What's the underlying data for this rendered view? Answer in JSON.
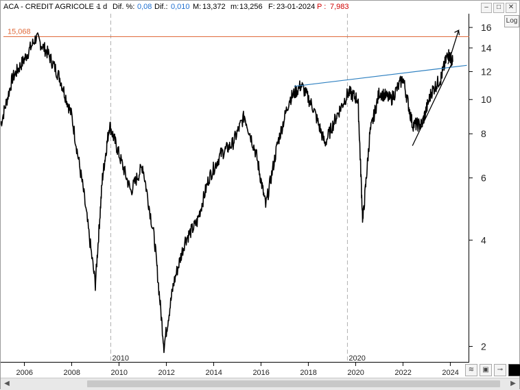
{
  "header": {
    "symbol": "ACA",
    "name": "CREDIT AGRICOLE",
    "period": "1 d",
    "diff_pct_label": "Dif. %:",
    "diff_pct_value": "0,08",
    "diff_label": "Dif.:",
    "diff_value": "0,010",
    "max_label": "M:",
    "max_value": "13,372",
    "min_label": "m:",
    "min_value": "13,256",
    "date_label": "F:",
    "date_value": "23-01-2024",
    "p_label": "P :",
    "p_value": "7,983"
  },
  "window_controls": [
    "minimize-icon",
    "maximize-icon",
    "close-icon"
  ],
  "log_button": "Log",
  "horizontal_line_label": "15,068",
  "colors": {
    "price": "#000000",
    "resistance_line": "#e06a3a",
    "blue_trendline": "#2c7fc0",
    "accent_blue": "#1e6fd0",
    "accent_red": "#d00000"
  },
  "chart_data": {
    "type": "line",
    "y_scale": "log",
    "y_ticks": [
      "2",
      "4",
      "6",
      "8",
      "10",
      "12",
      "14",
      "16"
    ],
    "x_ticks": [
      "2006",
      "2008",
      "2010",
      "2012",
      "2014",
      "2016",
      "2018",
      "2020",
      "2022",
      "2024"
    ],
    "decade_markers": [
      "2010",
      "2020"
    ],
    "series": [
      {
        "values_x": [
          2005.0,
          2005.5,
          2006.0,
          2006.5,
          2007.0,
          2007.5,
          2008.0,
          2008.5,
          2009.0,
          2009.3,
          2009.6,
          2010.0,
          2010.5,
          2011.0,
          2011.5,
          2011.9,
          2012.3,
          2012.8,
          2013.3,
          2013.8,
          2014.3,
          2014.8,
          2015.3,
          2015.8,
          2016.2,
          2016.7,
          2017.2,
          2017.7,
          2018.2,
          2018.7,
          2019.2,
          2019.7,
          2020.1,
          2020.3,
          2020.6,
          2021.0,
          2021.5,
          2022.0,
          2022.4,
          2022.8,
          2023.2,
          2023.6,
          2023.9,
          2024.1
        ],
        "values_y": [
          8.5,
          11.5,
          13.0,
          15.0,
          13.5,
          11.5,
          9.0,
          5.5,
          3.0,
          6.0,
          8.5,
          7.0,
          5.5,
          6.5,
          4.0,
          2.0,
          3.0,
          4.0,
          4.5,
          6.0,
          7.0,
          7.5,
          9.0,
          7.0,
          5.0,
          7.5,
          10.0,
          11.0,
          9.5,
          7.5,
          9.0,
          10.5,
          10.0,
          4.5,
          8.0,
          10.5,
          10.0,
          11.5,
          8.5,
          8.5,
          10.5,
          11.5,
          13.5,
          12.8
        ]
      }
    ],
    "horizontal_line": 15.068,
    "ylim": [
      1.8,
      17.5
    ],
    "xlim": [
      2005.0,
      2024.8
    ]
  }
}
